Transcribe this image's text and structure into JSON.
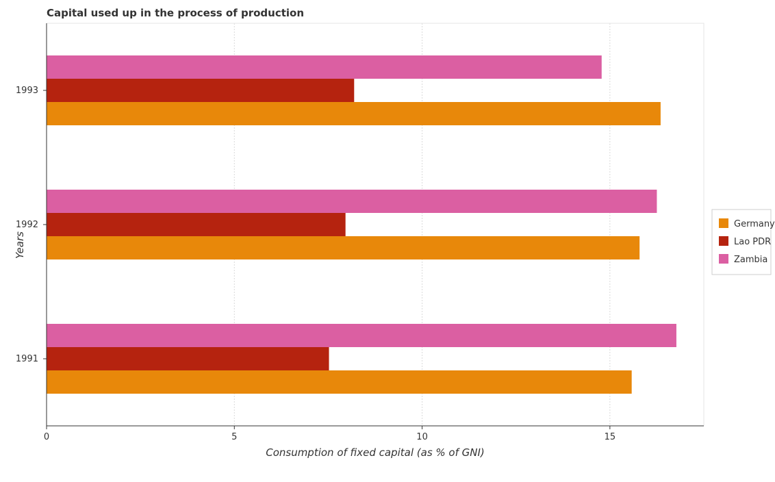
{
  "chart_data": {
    "type": "bar",
    "orientation": "horizontal",
    "title": "Capital used up in the process of production",
    "xlabel": "Consumption of fixed capital (as % of GNI)",
    "ylabel": "Years",
    "categories": [
      "1991",
      "1992",
      "1993"
    ],
    "series": [
      {
        "name": "Germany",
        "color": "#e8880a",
        "values": [
          15.58,
          15.79,
          16.35
        ]
      },
      {
        "name": "Lao PDR",
        "color": "#b5230f",
        "values": [
          7.52,
          7.96,
          8.19
        ]
      },
      {
        "name": "Zambia",
        "color": "#db5fa2",
        "values": [
          16.77,
          16.25,
          14.78
        ]
      }
    ],
    "xlim": [
      0,
      17.5
    ],
    "xticks": [
      0,
      5,
      10,
      15
    ],
    "grid": true,
    "legend_position": "right"
  }
}
